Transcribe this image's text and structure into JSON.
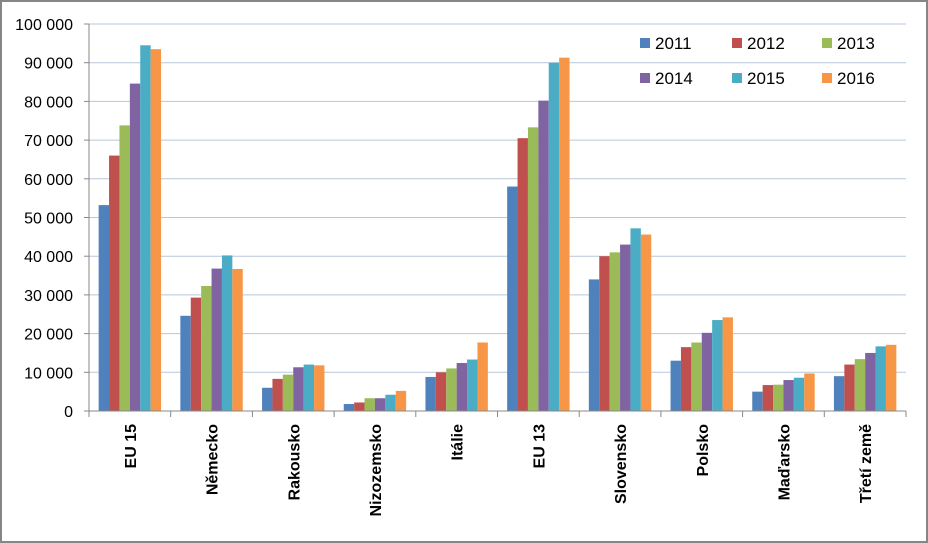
{
  "chart_data": {
    "type": "bar",
    "categories": [
      "EU 15",
      "Německo",
      "Rakousko",
      "Nizozemsko",
      "Itálie",
      "EU 13",
      "Slovensko",
      "Polsko",
      "Maďarsko",
      "Třetí země"
    ],
    "series": [
      {
        "name": "2011",
        "color": "#4F81BD",
        "values": [
          53200,
          24600,
          6000,
          1800,
          8800,
          58000,
          34000,
          13000,
          5000,
          9000
        ]
      },
      {
        "name": "2012",
        "color": "#C0504D",
        "values": [
          66000,
          29300,
          8300,
          2200,
          10000,
          70500,
          40000,
          16500,
          6700,
          12000
        ]
      },
      {
        "name": "2013",
        "color": "#9BBB59",
        "values": [
          73800,
          32300,
          9400,
          3300,
          11000,
          73300,
          41000,
          17700,
          6800,
          13400
        ]
      },
      {
        "name": "2014",
        "color": "#8064A2",
        "values": [
          84600,
          36800,
          11300,
          3300,
          12400,
          80200,
          43000,
          20200,
          8000,
          15000
        ]
      },
      {
        "name": "2015",
        "color": "#4BACC6",
        "values": [
          94500,
          40200,
          12000,
          4200,
          13300,
          90000,
          47200,
          23500,
          8600,
          16700
        ]
      },
      {
        "name": "2016",
        "color": "#F79646",
        "values": [
          93500,
          36700,
          11800,
          5200,
          17700,
          91300,
          45600,
          24200,
          9700,
          17100
        ]
      }
    ],
    "y_ticks": [
      "0",
      "10 000",
      "20 000",
      "30 000",
      "40 000",
      "50 000",
      "60 000",
      "70 000",
      "80 000",
      "90 000",
      "100 000"
    ],
    "ylim": [
      0,
      100000
    ],
    "grid": true,
    "legend_position": "top-right",
    "title": "",
    "xlabel": "",
    "ylabel": ""
  }
}
